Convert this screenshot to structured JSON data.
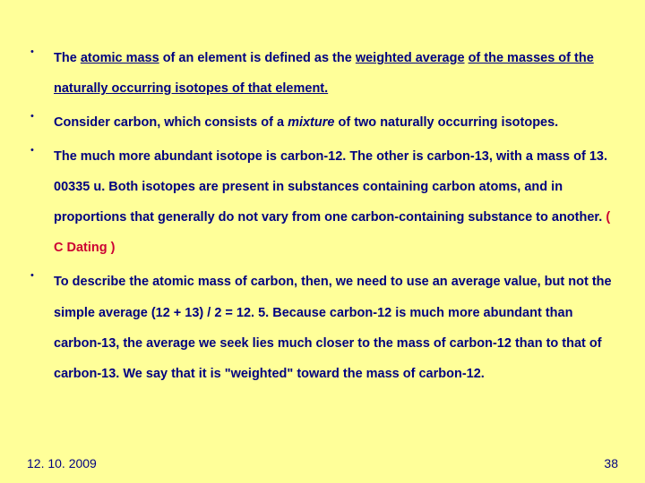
{
  "bullets": [
    {
      "segments": [
        {
          "text": "The ",
          "u": false
        },
        {
          "text": "atomic mass",
          "u": true
        },
        {
          "text": " of an element is defined as the ",
          "u": false
        },
        {
          "text": "weighted average",
          "u": true
        },
        {
          "text": " ",
          "u": false
        },
        {
          "text": "of the masses of the naturally occurring isotopes of that element.",
          "u": true
        }
      ]
    },
    {
      "segments": [
        {
          "text": "Consider carbon, which consists of a "
        },
        {
          "text": "mixture",
          "i": true
        },
        {
          "text": " of two naturally occurring isotopes."
        }
      ]
    },
    {
      "segments": [
        {
          "text": "The much more abundant isotope is carbon-12. The other is carbon-13, with a mass of 13. 00335 u. Both isotopes are present in substances containing carbon atoms, and in proportions that generally do not vary from one carbon-containing substance to another. "
        },
        {
          "text": "( C Dating )",
          "red": true
        }
      ]
    },
    {
      "segments": [
        {
          "text": "To describe the atomic mass of carbon, then, we need to use an average value, but not the simple average (12 + 13) / 2 = 12. 5. Because carbon-12 is much more abundant than carbon-13, the average we seek lies much closer to the mass of carbon-12 than to that of carbon-13. We say that it is \"weighted\" toward the mass of carbon-12."
        }
      ]
    }
  ],
  "footer": {
    "date": "12. 10. 2009",
    "page": "38"
  },
  "colors": {
    "bg": "#ffff99",
    "text": "#000080",
    "accent": "#cc0033"
  }
}
